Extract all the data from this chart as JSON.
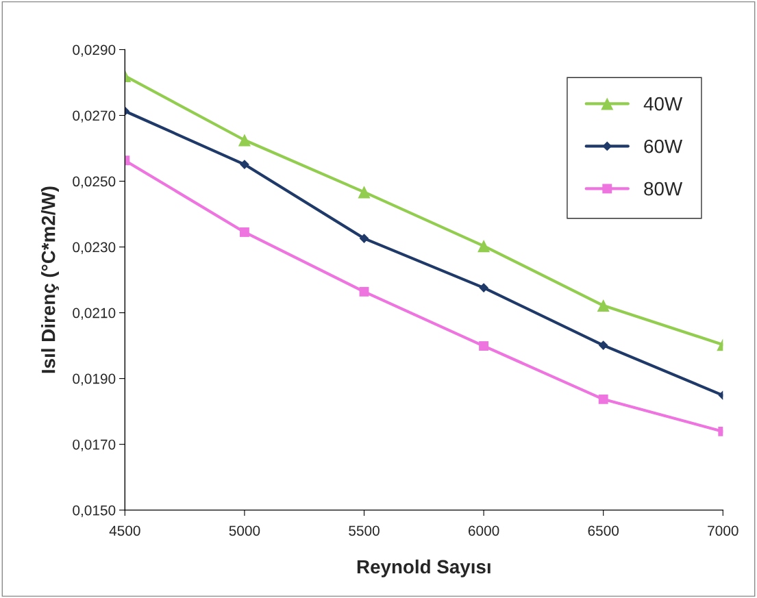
{
  "chart_data": {
    "type": "line",
    "xlabel": "Reynold Sayısı",
    "ylabel": "Isıl Direnç (°C*m2/W)",
    "x": [
      4500,
      5000,
      5500,
      6000,
      6500,
      7000
    ],
    "series": [
      {
        "name": "40W",
        "color": "#92cd50",
        "marker": "triangle",
        "values": [
          0.0282,
          0.02625,
          0.02467,
          0.02303,
          0.02122,
          0.02003
        ]
      },
      {
        "name": "60W",
        "color": "#1f3a68",
        "marker": "diamond",
        "values": [
          0.02713,
          0.02551,
          0.02326,
          0.02176,
          0.02001,
          0.01849
        ]
      },
      {
        "name": "80W",
        "color": "#ee74e0",
        "marker": "square",
        "values": [
          0.02563,
          0.02345,
          0.02164,
          0.01999,
          0.01837,
          0.01739
        ]
      }
    ],
    "xlim": [
      4500,
      7000
    ],
    "xticks": [
      4500,
      5000,
      5500,
      6000,
      6500,
      7000
    ],
    "ylim": [
      0.015,
      0.029
    ],
    "yticks": [
      {
        "value": 0.015,
        "label": "0,0150"
      },
      {
        "value": 0.017,
        "label": "0,0170"
      },
      {
        "value": 0.019,
        "label": "0,0190"
      },
      {
        "value": 0.021,
        "label": "0,0210"
      },
      {
        "value": 0.023,
        "label": "0,0230"
      },
      {
        "value": 0.025,
        "label": "0,0250"
      },
      {
        "value": 0.027,
        "label": "0,0270"
      },
      {
        "value": 0.029,
        "label": "0,0290"
      }
    ],
    "grid": false,
    "legend": "top right"
  }
}
